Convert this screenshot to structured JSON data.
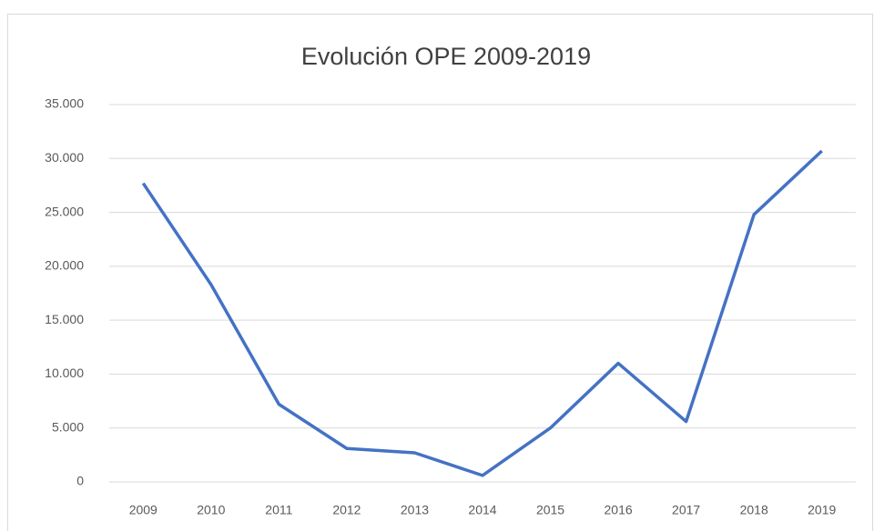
{
  "chart_data": {
    "type": "line",
    "title": "Evolución OPE 2009-2019",
    "categories": [
      "2009",
      "2010",
      "2011",
      "2012",
      "2013",
      "2014",
      "2015",
      "2016",
      "2017",
      "2018",
      "2019"
    ],
    "series": [
      {
        "name": "OPE",
        "color": "#4472c4",
        "values": [
          27700,
          18300,
          7200,
          3100,
          2700,
          600,
          5000,
          11000,
          5600,
          24800,
          30700
        ]
      }
    ],
    "ylim": [
      0,
      35000
    ],
    "yticks": [
      0,
      {
        "value": 5000,
        "label": "5.000"
      },
      {
        "value": 10000,
        "label": "10.000"
      },
      {
        "value": 15000,
        "label": "15.000"
      },
      {
        "value": 20000,
        "label": "20.000"
      },
      {
        "value": 25000,
        "label": "25.000"
      },
      {
        "value": 30000,
        "label": "30.000"
      },
      {
        "value": 35000,
        "label": "35.000"
      }
    ],
    "grid": true
  }
}
